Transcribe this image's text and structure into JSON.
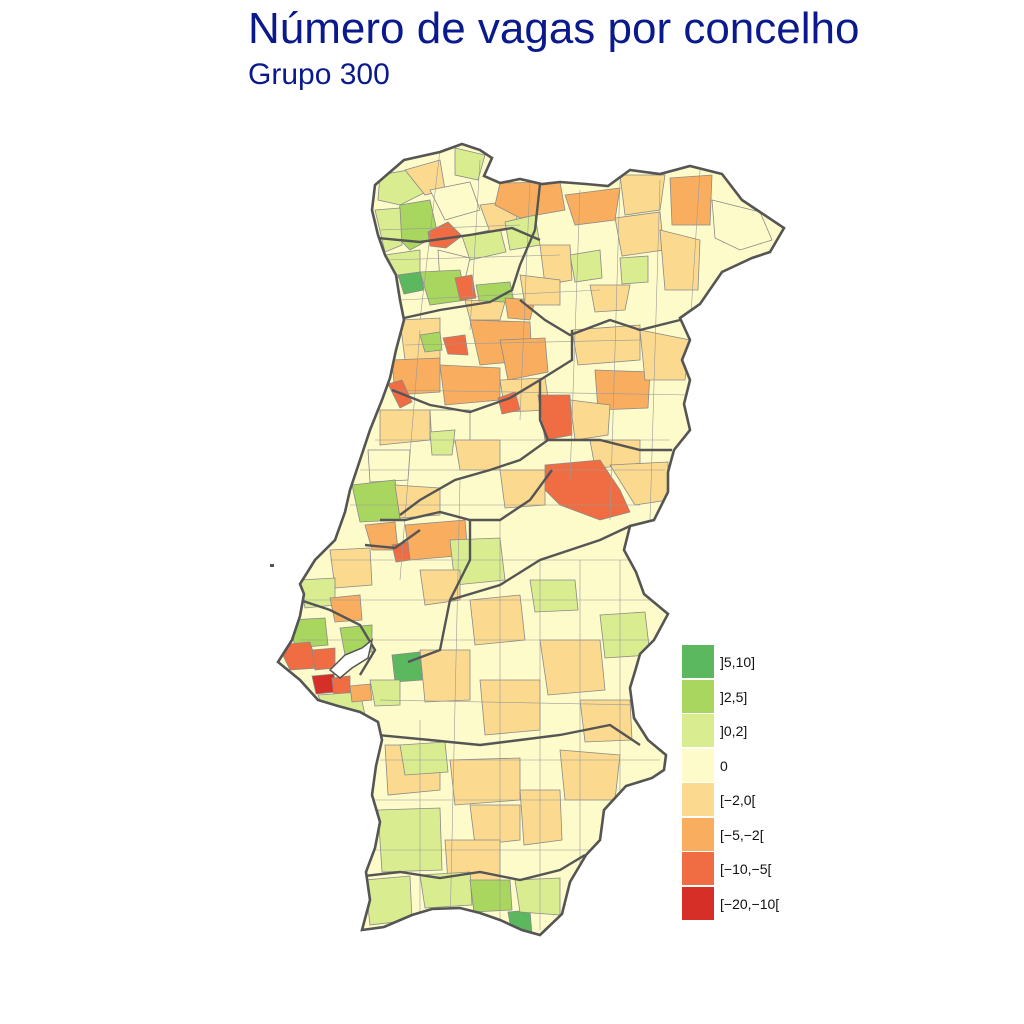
{
  "header": {
    "title": "Número de vagas por concelho",
    "subtitle": "Grupo 300"
  },
  "colors": {
    "district_border": "#555555",
    "municipality_border": "#8a8a8a"
  },
  "legend": {
    "items": [
      {
        "label": "]5,10]",
        "color": "#5bb85e"
      },
      {
        "label": "]2,5]",
        "color": "#a8d65f"
      },
      {
        "label": "]0,2]",
        "color": "#d9ec90"
      },
      {
        "label": "0",
        "color": "#fdfbc9"
      },
      {
        "label": "[−2,0[",
        "color": "#fbd98e"
      },
      {
        "label": "[−5,−2[",
        "color": "#f9ad5f"
      },
      {
        "label": "[−10,−5[",
        "color": "#f06c43"
      },
      {
        "label": "[−20,−10[",
        "color": "#d62f27"
      }
    ]
  }
}
